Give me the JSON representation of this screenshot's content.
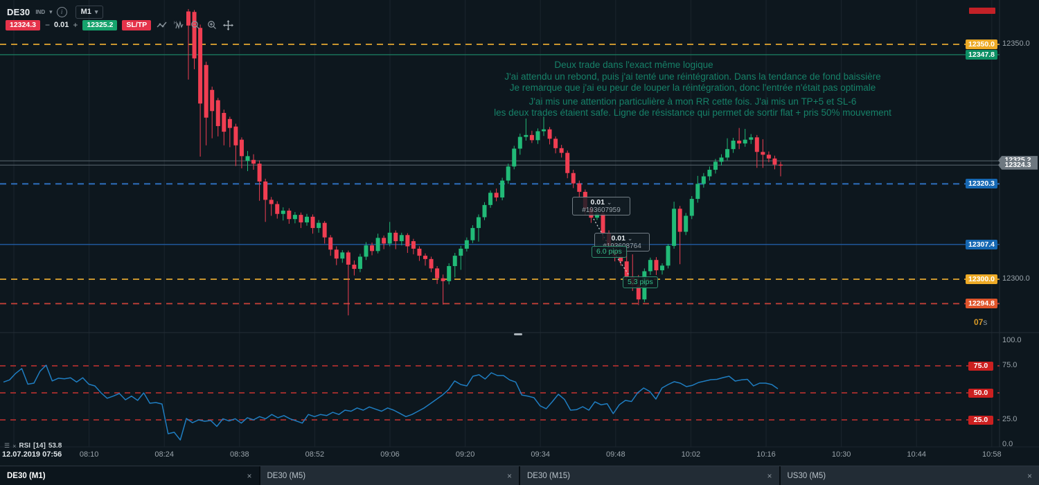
{
  "toolbar": {
    "symbol": "DE30",
    "instrument_type": "IND",
    "timeframe": "M1",
    "sell_price": "12324.3",
    "volume_minus": "−",
    "volume": "0.01",
    "volume_plus": "+",
    "buy_price": "12325.2",
    "sltp_label": "SL/TP"
  },
  "annotation": {
    "color": "#178a6f",
    "lines": [
      "Deux trade dans l'exact même logique",
      "J'ai attendu un rebond, puis j'ai tenté une réintégration. Dans la tendance de fond baissière",
      "Je remarque que j'ai eu peur de louper la réintégration, donc l'entrée n'était pas optimale",
      "J'ai mis une attention particulière à mon RR cette fois. J'ai mis un TP+5 et SL-6",
      "les deux trades étaient safe. Ligne de résistance qui permet de sortir flat + pris 50% mouvement"
    ]
  },
  "trades": [
    {
      "volume": "0.01",
      "chevron": "⌄",
      "order_id": "#193607959",
      "pips": "6.0 pips"
    },
    {
      "volume": "0.01",
      "chevron": "⌄",
      "order_id": "#193608764",
      "pips": "5.3 pips"
    }
  ],
  "countdown": {
    "value": "07",
    "unit": "s"
  },
  "rsi_label": {
    "name": "RSI",
    "params": "[14]",
    "value": "53.8",
    "menu_icon": "☰",
    "close_icon": "×"
  },
  "tabs": [
    {
      "label": "DE30 (M1)",
      "active": true,
      "close": "×"
    },
    {
      "label": "DE30 (M5)",
      "active": false,
      "close": "×"
    },
    {
      "label": "DE30 (M15)",
      "active": false,
      "close": "×"
    },
    {
      "label": "US30 (M5)",
      "active": false,
      "close": "×"
    }
  ],
  "chart_data": [
    {
      "type": "candlestick",
      "title": "DE30 (M1)",
      "date": "12.07.2019",
      "up_color": "#21ba77",
      "down_color": "#f03e52",
      "visible_range": {
        "high": 12357.5,
        "low": 12291.5
      },
      "price_levels": [
        {
          "label": "12350.0",
          "price": 12350.0,
          "line": "dashed",
          "line_color": "#c9952e",
          "variant": "orange",
          "axis_text": "12350.0"
        },
        {
          "label": "12347.8",
          "price": 12347.8,
          "line": "solid",
          "line_color": "#1b7a5e",
          "variant": "green"
        },
        {
          "label": "12320.3",
          "price": 12320.3,
          "line": "dashed",
          "line_color": "#2e6fbf",
          "variant": "blue"
        },
        {
          "label": "12307.4",
          "price": 12307.4,
          "line": "solid",
          "line_color": "#215ea6",
          "variant": "blue"
        },
        {
          "label": "12300.0",
          "price": 12300.0,
          "line": "dashed",
          "line_color": "#c9952e",
          "variant": "orange",
          "axis_text": "12300.0"
        },
        {
          "label": "12294.8",
          "price": 12294.8,
          "line": "dashed",
          "line_color": "#b53d36",
          "variant": "redorange"
        }
      ],
      "bid_ask": [
        {
          "label": "12325.2",
          "price": 12325.2
        },
        {
          "label": "12324.3",
          "price": 12324.3
        }
      ],
      "candles": [
        [
          12357.0,
          12357.5,
          12342.5,
          12354.0
        ],
        [
          12356.9,
          12357.3,
          12344.7,
          12347.0
        ],
        [
          12353.5,
          12354.2,
          12326.1,
          12337.4
        ],
        [
          12345.6,
          12346.3,
          12328.5,
          12334.4
        ],
        [
          12340.3,
          12341.0,
          12330.0,
          12335.8
        ],
        [
          12338.1,
          12338.6,
          12330.4,
          12332.6
        ],
        [
          12335.4,
          12336.1,
          12328.5,
          12331.4
        ],
        [
          12334.1,
          12334.6,
          12328.1,
          12332.2
        ],
        [
          12332.5,
          12333.1,
          12324.1,
          12328.5
        ],
        [
          12329.7,
          12330.2,
          12323.6,
          12326.2
        ],
        [
          12325.2,
          12327.3,
          12323.0,
          12326.2
        ],
        [
          12325.4,
          12326.6,
          12323.3,
          12324.6
        ],
        [
          12324.6,
          12325.3,
          12316.7,
          12320.8
        ],
        [
          12320.8,
          12321.4,
          12312.2,
          12316.9
        ],
        [
          12316.9,
          12317.5,
          12313.5,
          12316.0
        ],
        [
          12316.0,
          12316.6,
          12312.9,
          12313.9
        ],
        [
          12313.9,
          12315.3,
          12312.5,
          12314.6
        ],
        [
          12314.6,
          12315.1,
          12311.8,
          12312.8
        ],
        [
          12312.8,
          12314.3,
          12311.9,
          12313.7
        ],
        [
          12313.7,
          12314.2,
          12310.9,
          12312.1
        ],
        [
          12312.1,
          12313.9,
          12311.4,
          12313.3
        ],
        [
          12313.3,
          12313.8,
          12309.7,
          12310.9
        ],
        [
          12310.9,
          12312.6,
          12309.9,
          12312.0
        ],
        [
          12312.0,
          12312.4,
          12307.6,
          12308.9
        ],
        [
          12308.9,
          12309.4,
          12305.0,
          12306.3
        ],
        [
          12306.3,
          12307.0,
          12303.0,
          12304.4
        ],
        [
          12304.4,
          12306.2,
          12303.5,
          12305.7
        ],
        [
          12305.7,
          12306.1,
          12292.3,
          12303.1
        ],
        [
          12303.1,
          12304.0,
          12300.8,
          12302.2
        ],
        [
          12302.2,
          12305.4,
          12301.5,
          12304.8
        ],
        [
          12304.8,
          12307.9,
          12304.1,
          12307.2
        ],
        [
          12307.2,
          12307.8,
          12305.1,
          12306.0
        ],
        [
          12306.0,
          12309.7,
          12305.5,
          12308.8
        ],
        [
          12308.8,
          12309.3,
          12306.4,
          12307.6
        ],
        [
          12307.6,
          12312.2,
          12307.0,
          12309.9
        ],
        [
          12309.9,
          12310.4,
          12306.4,
          12308.1
        ],
        [
          12308.1,
          12309.9,
          12307.2,
          12309.4
        ],
        [
          12309.4,
          12309.8,
          12305.6,
          12307.0
        ],
        [
          12308.1,
          12308.6,
          12305.3,
          12306.5
        ],
        [
          12306.5,
          12307.0,
          12303.9,
          12305.0
        ],
        [
          12305.0,
          12305.5,
          12302.9,
          12304.3
        ],
        [
          12304.3,
          12304.8,
          12301.5,
          12302.3
        ],
        [
          12302.3,
          12302.8,
          12299.0,
          12300.2
        ],
        [
          12300.2,
          12301.0,
          12294.6,
          12299.6
        ],
        [
          12299.6,
          12303.4,
          12298.9,
          12302.8
        ],
        [
          12302.8,
          12305.6,
          12300.4,
          12305.0
        ],
        [
          12305.0,
          12307.1,
          12302.0,
          12306.5
        ],
        [
          12306.5,
          12308.9,
          12305.9,
          12308.3
        ],
        [
          12308.3,
          12311.5,
          12307.7,
          12310.9
        ],
        [
          12310.9,
          12313.8,
          12308.0,
          12313.2
        ],
        [
          12313.2,
          12316.4,
          12312.6,
          12315.8
        ],
        [
          12315.8,
          12318.9,
          12315.2,
          12318.4
        ],
        [
          12318.4,
          12319.3,
          12316.6,
          12317.4
        ],
        [
          12317.4,
          12321.6,
          12316.8,
          12321.0
        ],
        [
          12321.0,
          12324.6,
          12320.3,
          12324.0
        ],
        [
          12324.0,
          12328.4,
          12323.4,
          12327.8
        ],
        [
          12327.8,
          12331.0,
          12326.5,
          12330.3
        ],
        [
          12330.3,
          12334.2,
          12329.5,
          12330.7
        ],
        [
          12330.7,
          12331.6,
          12329.0,
          12329.6
        ],
        [
          12329.6,
          12332.1,
          12328.8,
          12331.5
        ],
        [
          12331.5,
          12334.6,
          12330.5,
          12331.9
        ],
        [
          12331.9,
          12332.4,
          12328.7,
          12329.9
        ],
        [
          12329.9,
          12330.4,
          12326.8,
          12327.9
        ],
        [
          12327.9,
          12328.6,
          12325.9,
          12326.9
        ],
        [
          12326.9,
          12327.4,
          12321.5,
          12322.6
        ],
        [
          12322.6,
          12323.3,
          12319.4,
          12320.4
        ],
        [
          12320.4,
          12321.0,
          12317.5,
          12318.6
        ],
        [
          12318.6,
          12319.1,
          12313.6,
          12315.0
        ],
        [
          12315.0,
          12315.6,
          12312.0,
          12313.1
        ],
        [
          12313.1,
          12314.6,
          12312.6,
          12314.0
        ],
        [
          12314.0,
          12314.4,
          12308.3,
          12309.8
        ],
        [
          12309.8,
          12310.4,
          12305.8,
          12306.9
        ],
        [
          12306.9,
          12307.9,
          12303.8,
          12304.9
        ],
        [
          12304.9,
          12305.5,
          12302.9,
          12303.8
        ],
        [
          12303.8,
          12306.9,
          12299.8,
          12300.6
        ],
        [
          12300.6,
          12305.3,
          12297.5,
          12298.7
        ],
        [
          12298.7,
          12300.9,
          12294.5,
          12295.7
        ],
        [
          12295.7,
          12302.3,
          12295.1,
          12301.7
        ],
        [
          12301.7,
          12304.6,
          12300.9,
          12304.1
        ],
        [
          12304.1,
          12304.7,
          12300.9,
          12301.9
        ],
        [
          12301.9,
          12303.4,
          12301.0,
          12302.9
        ],
        [
          12302.9,
          12307.5,
          12302.3,
          12307.1
        ],
        [
          12307.1,
          12316.5,
          12306.5,
          12315.0
        ],
        [
          12315.0,
          12315.6,
          12303.2,
          12310.1
        ],
        [
          12310.1,
          12314.1,
          12309.4,
          12313.5
        ],
        [
          12313.5,
          12317.7,
          12312.8,
          12317.1
        ],
        [
          12317.1,
          12322.0,
          12316.3,
          12320.3
        ],
        [
          12320.3,
          12322.6,
          12319.5,
          12321.9
        ],
        [
          12321.9,
          12324.0,
          12321.0,
          12323.3
        ],
        [
          12323.3,
          12325.6,
          12322.5,
          12325.0
        ],
        [
          12325.0,
          12326.6,
          12324.2,
          12325.9
        ],
        [
          12325.9,
          12330.0,
          12325.3,
          12327.7
        ],
        [
          12327.7,
          12330.1,
          12326.9,
          12329.5
        ],
        [
          12329.5,
          12332.2,
          12327.7,
          12328.9
        ],
        [
          12328.9,
          12332.0,
          12328.2,
          12329.7
        ],
        [
          12329.7,
          12330.9,
          12328.8,
          12330.2
        ],
        [
          12330.2,
          12330.7,
          12323.7,
          12327.1
        ],
        [
          12327.1,
          12329.8,
          12323.7,
          12326.5
        ],
        [
          12326.5,
          12327.2,
          12324.9,
          12325.7
        ],
        [
          12325.7,
          12326.3,
          12323.4,
          12324.4
        ],
        [
          12324.4,
          12325.0,
          12321.9,
          12324.3
        ]
      ],
      "time_axis": [
        "12.07.2019 07:56",
        "08:10",
        "08:24",
        "08:38",
        "08:52",
        "09:06",
        "09:20",
        "09:34",
        "09:48",
        "10:02",
        "10:16",
        "10:30",
        "10:44",
        "10:58"
      ]
    },
    {
      "type": "line",
      "name": "RSI",
      "period": 14,
      "current": 53.8,
      "range": [
        0,
        100
      ],
      "levels": [
        75,
        50,
        25
      ],
      "level_tags": [
        {
          "label": "75.0",
          "value": 75,
          "axis_text": "75.0"
        },
        {
          "label": "50.0",
          "value": 50
        },
        {
          "label": "25.0",
          "value": 25,
          "axis_text": "25.0"
        }
      ],
      "axis_texts": [
        {
          "label": "100.0",
          "value": 100
        },
        {
          "label": "0.0",
          "value": 0
        }
      ],
      "line_color": "#1f7ec2",
      "level_color": "#992c2c",
      "series": [
        60,
        62,
        68,
        72.5,
        58,
        59,
        70,
        75.6,
        61,
        63.5,
        63,
        64,
        60,
        64,
        58,
        56.4,
        50,
        45,
        47,
        49.4,
        43.6,
        47,
        43,
        50,
        40.4,
        41,
        39.7,
        12.2,
        13.5,
        6.4,
        26.3,
        22.4,
        25,
        23.7,
        24.4,
        19,
        26,
        24,
        26,
        22,
        27,
        25,
        28,
        26,
        30,
        27,
        29,
        26,
        24,
        22,
        30,
        28,
        30,
        29,
        32,
        30,
        34,
        33,
        36,
        34,
        37,
        35,
        33,
        36,
        34,
        31,
        28,
        30,
        33,
        36,
        40,
        44,
        48,
        53,
        61,
        57.7,
        56.4,
        65.4,
        66.7,
        62.8,
        68.6,
        66,
        66,
        62,
        60,
        48,
        47,
        45.5,
        38,
        35.3,
        41.7,
        48.7,
        44,
        34,
        34.5,
        37.2,
        34,
        41.7,
        39,
        40,
        30.8,
        39,
        43,
        42,
        50,
        54.5,
        51.3,
        44.2,
        54.5,
        57.7,
        60.3,
        59,
        55.8,
        57,
        59.6,
        60.9,
        62.2,
        62.5,
        64.1,
        65.4,
        60.9,
        62,
        62.5,
        56.4,
        59,
        59,
        57.7,
        53.8
      ]
    }
  ]
}
